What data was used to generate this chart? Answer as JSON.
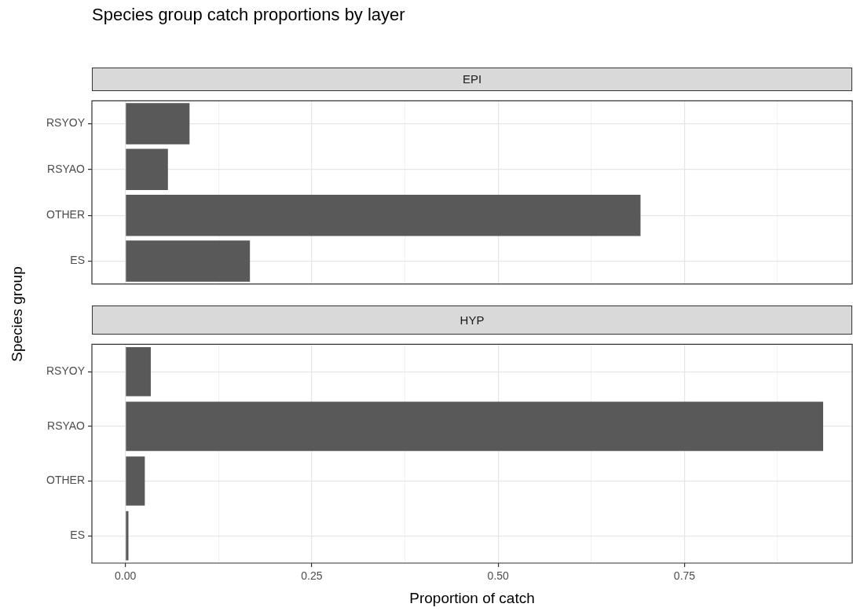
{
  "chart_data": [
    {
      "type": "bar",
      "title": "Species group catch proportions by layer",
      "subtitle": "EPI",
      "ylabel": "Species group",
      "orientation": "horizontal",
      "categories": [
        "RSYOY",
        "RSYAO",
        "OTHER",
        "ES"
      ],
      "values": [
        0.086,
        0.057,
        0.691,
        0.167
      ],
      "color": "#595959",
      "xlim": [
        -0.045,
        0.975
      ],
      "xticks": [
        0,
        {
          "value": 0.125,
          "label": null
        },
        0.25,
        {
          "value": 0.375,
          "label": null
        },
        0.5,
        {
          "value": 0.625,
          "label": null
        },
        0.75,
        {
          "value": 0.875,
          "label": null
        }
      ],
      "grid": true,
      "legend": false,
      "tick_labels": "y"
    },
    {
      "type": "bar",
      "subtitle": "HYP",
      "xlabel": "Proportion of catch",
      "orientation": "horizontal",
      "categories": [
        "RSYOY",
        "RSYAO",
        "OTHER",
        "ES"
      ],
      "values": [
        0.034,
        0.936,
        0.026,
        0.004
      ],
      "color": "#595959",
      "xlim": [
        -0.045,
        0.975
      ],
      "xticks": [
        {
          "value": 0,
          "label": "0.00"
        },
        {
          "value": 0.125,
          "label": null
        },
        {
          "value": 0.25,
          "label": "0.25"
        },
        {
          "value": 0.375,
          "label": null
        },
        {
          "value": 0.5,
          "label": "0.50"
        },
        {
          "value": 0.625,
          "label": null
        },
        {
          "value": 0.75,
          "label": "0.75"
        },
        {
          "value": 0.875,
          "label": null
        }
      ],
      "grid": true,
      "legend": false
    }
  ]
}
